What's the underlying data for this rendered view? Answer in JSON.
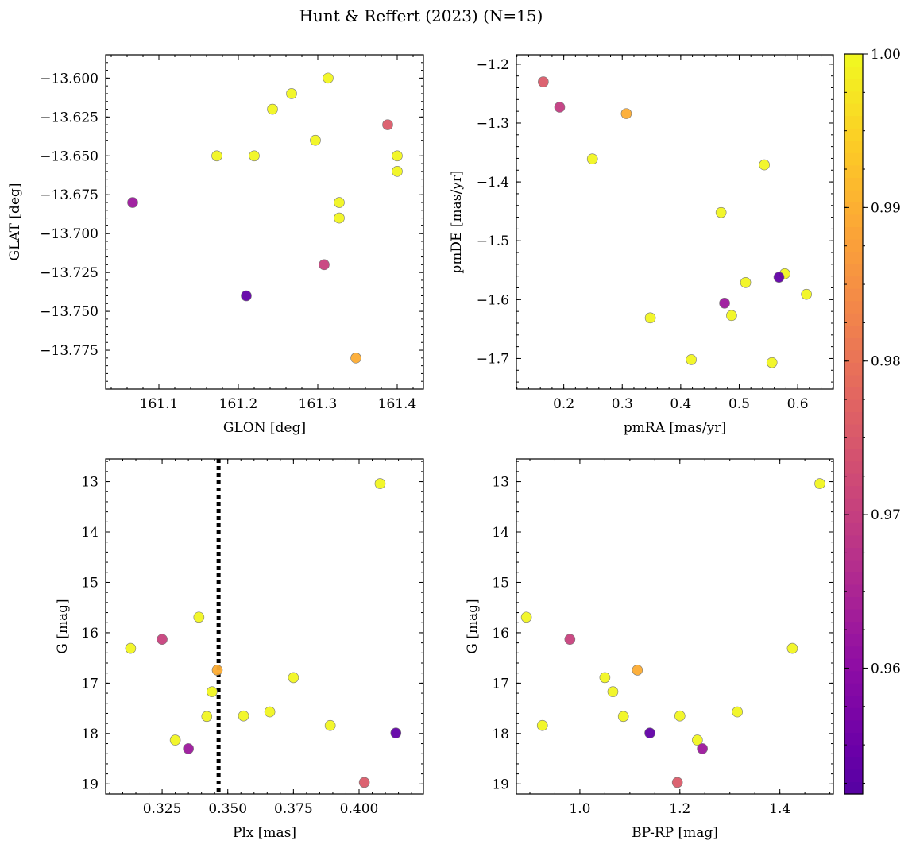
{
  "figure": {
    "title": "Hunt & Reffert (2023) (N=15)"
  },
  "colormap": {
    "name": "plasma",
    "range": [
      0.9518,
      1.0
    ],
    "ticks": [
      0.96,
      0.97,
      0.98,
      0.99,
      1.0
    ],
    "tick_labels": [
      "0.96",
      "0.97",
      "0.98",
      "0.99",
      "1.00"
    ]
  },
  "chart_data": [
    {
      "type": "scatter",
      "id": "glon-glat",
      "title": "",
      "xlabel": "GLON [deg]",
      "ylabel": "GLAT [deg]",
      "xlim": [
        161.033,
        161.433
      ],
      "ylim": [
        -13.8,
        -13.585
      ],
      "y_inverted": false,
      "xticks": [
        161.1,
        161.2,
        161.3,
        161.4
      ],
      "xtick_labels": [
        "161.1",
        "161.2",
        "161.3",
        "161.4"
      ],
      "yticks": [
        -13.6,
        -13.625,
        -13.65,
        -13.675,
        -13.7,
        -13.725,
        -13.75,
        -13.775
      ],
      "ytick_labels": [
        "−13.600",
        "−13.625",
        "−13.650",
        "−13.675",
        "−13.700",
        "−13.725",
        "−13.750",
        "−13.775"
      ],
      "vline": null,
      "x": [
        161.313,
        161.267,
        161.243,
        161.388,
        161.297,
        161.173,
        161.22,
        161.4,
        161.4,
        161.067,
        161.327,
        161.327,
        161.308,
        161.21,
        161.348
      ],
      "y": [
        -13.6,
        -13.61,
        -13.62,
        -13.63,
        -13.64,
        -13.65,
        -13.65,
        -13.65,
        -13.66,
        -13.68,
        -13.68,
        -13.69,
        -13.72,
        -13.74,
        -13.78
      ],
      "prob": [
        0.9995,
        0.9995,
        0.9995,
        0.9755,
        0.9995,
        0.9995,
        0.9995,
        0.9995,
        0.9995,
        0.9625,
        0.9995,
        0.9995,
        0.9705,
        0.9535,
        0.9895
      ]
    },
    {
      "type": "scatter",
      "id": "pmra-pmde",
      "title": "",
      "xlabel": "pmRA [mas/yr]",
      "ylabel": "pmDE [mas/yr]",
      "xlim": [
        0.119,
        0.661
      ],
      "ylim": [
        -1.752,
        -1.184
      ],
      "y_inverted": false,
      "xticks": [
        0.2,
        0.3,
        0.4,
        0.5,
        0.6
      ],
      "xtick_labels": [
        "0.2",
        "0.3",
        "0.4",
        "0.5",
        "0.6"
      ],
      "yticks": [
        -1.2,
        -1.3,
        -1.4,
        -1.5,
        -1.6,
        -1.7
      ],
      "ytick_labels": [
        "−1.2",
        "−1.3",
        "−1.4",
        "−1.5",
        "−1.6",
        "−1.7"
      ],
      "vline": null,
      "x": [
        0.165,
        0.193,
        0.307,
        0.249,
        0.543,
        0.469,
        0.578,
        0.568,
        0.511,
        0.615,
        0.475,
        0.487,
        0.348,
        0.418,
        0.556
      ],
      "y": [
        -1.23,
        -1.273,
        -1.284,
        -1.361,
        -1.371,
        -1.452,
        -1.556,
        -1.562,
        -1.571,
        -1.591,
        -1.606,
        -1.627,
        -1.631,
        -1.702,
        -1.707
      ],
      "prob": [
        0.9755,
        0.9695,
        0.9895,
        0.9995,
        0.9995,
        0.9995,
        0.9995,
        0.9535,
        0.9995,
        0.9995,
        0.9625,
        0.9995,
        0.9995,
        0.9995,
        0.9995
      ]
    },
    {
      "type": "scatter",
      "id": "plx-g",
      "title": "",
      "xlabel": "Plx [mas]",
      "ylabel": "G [mag]",
      "xlim": [
        0.3035,
        0.4245
      ],
      "ylim": [
        19.2,
        12.55
      ],
      "y_inverted": true,
      "xticks": [
        0.325,
        0.35,
        0.375,
        0.4
      ],
      "xtick_labels": [
        "0.325",
        "0.350",
        "0.375",
        "0.400"
      ],
      "yticks": [
        13,
        14,
        15,
        16,
        17,
        18,
        19
      ],
      "ytick_labels": [
        "13",
        "14",
        "15",
        "16",
        "17",
        "18",
        "19"
      ],
      "vline": 0.3465,
      "x": [
        0.408,
        0.339,
        0.313,
        0.325,
        0.346,
        0.375,
        0.344,
        0.342,
        0.356,
        0.366,
        0.389,
        0.33,
        0.335,
        0.414,
        0.402
      ],
      "y": [
        13.04,
        15.69,
        16.31,
        16.13,
        16.74,
        16.89,
        17.17,
        17.66,
        17.65,
        17.57,
        17.84,
        18.13,
        18.3,
        17.99,
        18.97
      ],
      "prob": [
        0.9995,
        0.9995,
        0.9995,
        0.9705,
        0.9895,
        0.9995,
        0.9995,
        0.9995,
        0.9995,
        0.9995,
        0.9995,
        0.9995,
        0.9625,
        0.9535,
        0.9755
      ]
    },
    {
      "type": "scatter",
      "id": "bprp-g",
      "title": "",
      "xlabel": "BP-RP [mag]",
      "ylabel": "G [mag]",
      "xlim": [
        0.873,
        1.507
      ],
      "ylim": [
        19.2,
        12.55
      ],
      "y_inverted": true,
      "xticks": [
        1.0,
        1.2,
        1.4
      ],
      "xtick_labels": [
        "1.0",
        "1.2",
        "1.4"
      ],
      "yticks": [
        13,
        14,
        15,
        16,
        17,
        18,
        19
      ],
      "ytick_labels": [
        "13",
        "14",
        "15",
        "16",
        "17",
        "18",
        "19"
      ],
      "vline": null,
      "x": [
        1.48,
        0.893,
        1.425,
        0.98,
        1.115,
        1.05,
        1.066,
        1.087,
        1.2,
        1.315,
        0.925,
        1.235,
        1.245,
        1.14,
        1.195
      ],
      "y": [
        13.04,
        15.69,
        16.31,
        16.13,
        16.74,
        16.89,
        17.17,
        17.66,
        17.65,
        17.57,
        17.84,
        18.13,
        18.3,
        17.99,
        18.97
      ],
      "prob": [
        0.9995,
        0.9995,
        0.9995,
        0.9705,
        0.9895,
        0.9995,
        0.9995,
        0.9995,
        0.9995,
        0.9995,
        0.9995,
        0.9995,
        0.9625,
        0.9535,
        0.9755
      ]
    }
  ]
}
